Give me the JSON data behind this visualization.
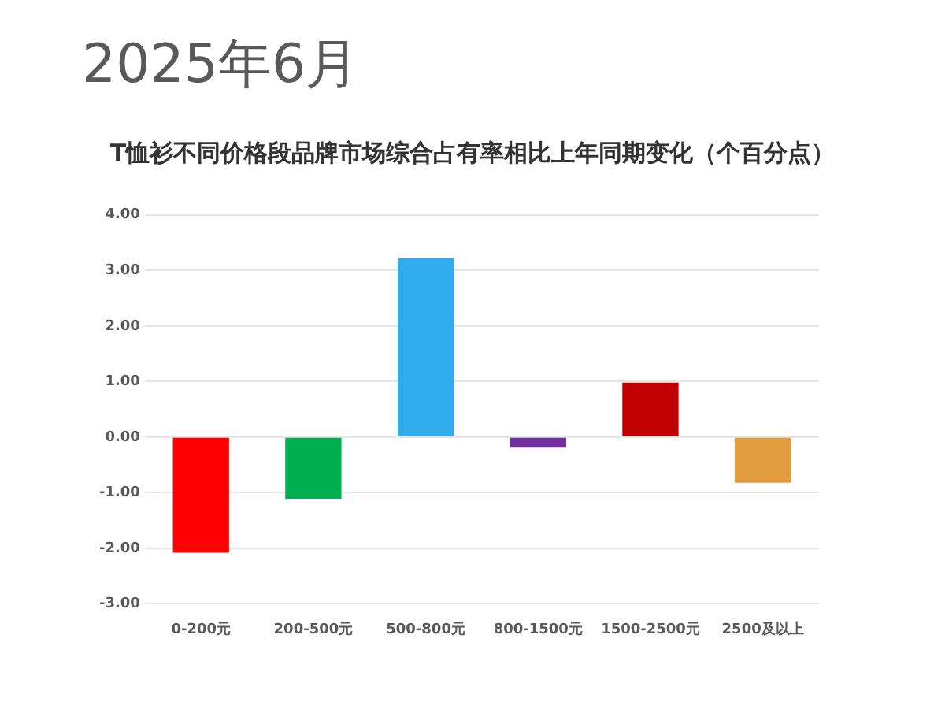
{
  "chart_data": {
    "type": "bar",
    "title": "T恤衫不同价格段品牌市场综合占有率相比上年同期变化（个百分点）",
    "subtitle": "2025年6月",
    "categories": [
      "0-200元",
      "200-500元",
      "500-800元",
      "800-1500元",
      "1500-2500元",
      "2500及以上"
    ],
    "values": [
      -2.08,
      -1.11,
      3.22,
      -0.19,
      0.98,
      -0.82
    ],
    "colors": [
      "#ff0000",
      "#00b050",
      "#31acec",
      "#7030a0",
      "#c00000",
      "#e39d3f"
    ],
    "ylim": [
      -3,
      4
    ],
    "yticks": [
      {
        "value": -3,
        "label": "-3.00"
      },
      {
        "value": -2,
        "label": "-2.00"
      },
      {
        "value": -1,
        "label": "-1.00"
      },
      {
        "value": 0,
        "label": "0.00"
      },
      {
        "value": 1,
        "label": "1.00"
      },
      {
        "value": 2,
        "label": "2.00"
      },
      {
        "value": 3,
        "label": "3.00"
      },
      {
        "value": 4,
        "label": "4.00"
      }
    ],
    "grid": "y",
    "legend": false
  }
}
